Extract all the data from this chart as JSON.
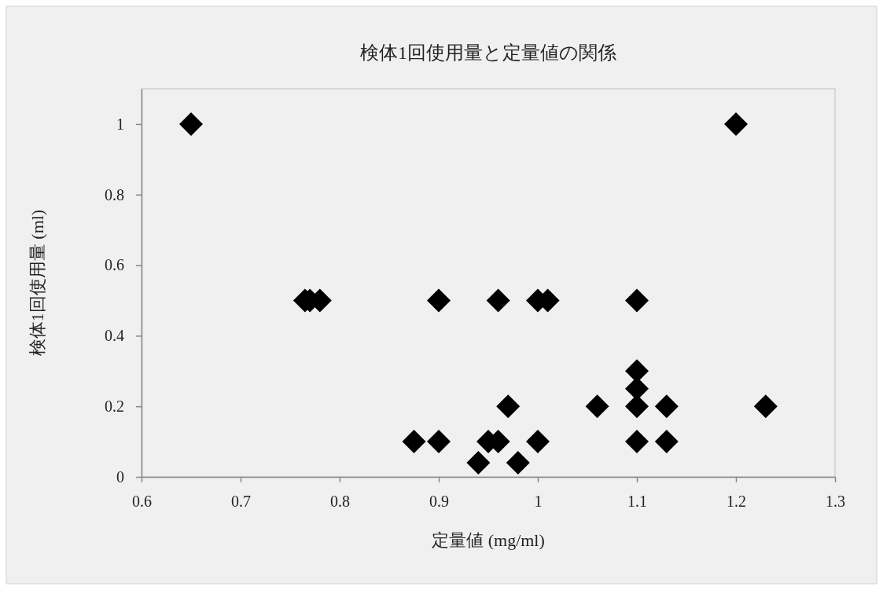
{
  "chart_data": {
    "type": "scatter",
    "title": "検体1回使用量と定量値の関係",
    "xlabel": "定量値 (mg/ml)",
    "ylabel": "検体1回使用量 (ml)",
    "x": [
      0.65,
      1.2,
      0.765,
      0.77,
      0.78,
      0.9,
      0.96,
      1.0,
      1.01,
      1.1,
      1.1,
      1.1,
      0.97,
      1.06,
      1.1,
      1.13,
      1.23,
      0.875,
      0.9,
      0.95,
      0.96,
      1.0,
      1.1,
      1.13,
      0.94,
      0.98
    ],
    "values": [
      1,
      1,
      0.5,
      0.5,
      0.5,
      0.5,
      0.5,
      0.5,
      0.5,
      0.5,
      0.3,
      0.25,
      0.2,
      0.2,
      0.2,
      0.2,
      0.2,
      0.1,
      0.1,
      0.1,
      0.1,
      0.1,
      0.1,
      0.1,
      0.04,
      0.04
    ],
    "color": "#000000",
    "marker": "diamond",
    "xlim": [
      0.6,
      1.3
    ],
    "xticks": [
      0.6,
      0.7,
      0.8,
      0.9,
      1,
      1.1,
      1.2,
      1.3
    ],
    "ylim": [
      0,
      1.1
    ],
    "yticks": [
      0,
      0.2,
      0.4,
      0.6,
      0.8,
      1
    ],
    "grid": false
  }
}
